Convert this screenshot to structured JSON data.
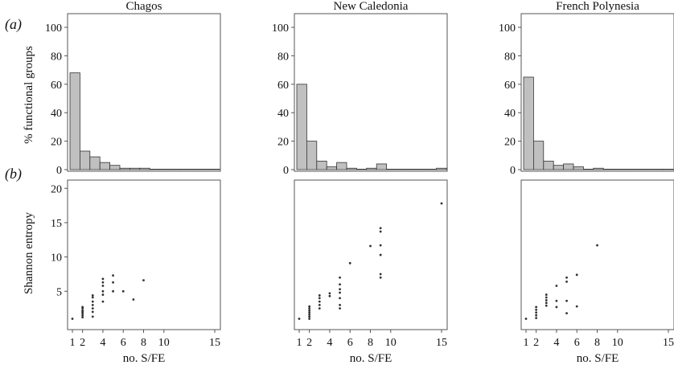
{
  "figure": {
    "label_a": "(a)",
    "label_b": "(b)",
    "ylabel_top": "% functional groups",
    "ylabel_bottom": "Shannon entropy",
    "xlabel": "no. S/FE",
    "bar_fill": "#c0c0c0",
    "point_color": "#333333"
  },
  "chart_data": [
    {
      "type": "bar",
      "title": "Chagos",
      "xlabel": "",
      "ylabel": "% functional groups",
      "x_bins": [
        1,
        2,
        3,
        4,
        5,
        6,
        7,
        8,
        9,
        10,
        11,
        12,
        13,
        14,
        15
      ],
      "values": [
        68,
        13,
        9,
        5,
        3,
        1,
        1,
        1,
        0,
        0,
        0,
        0,
        0,
        0,
        0
      ],
      "ylim": [
        0,
        100
      ],
      "yticks": [
        "0",
        "20",
        "40",
        "60",
        "80",
        "100"
      ]
    },
    {
      "type": "bar",
      "title": "New Caledonia",
      "xlabel": "",
      "ylabel": "",
      "x_bins": [
        1,
        2,
        3,
        4,
        5,
        6,
        7,
        8,
        9,
        10,
        11,
        12,
        13,
        14,
        15
      ],
      "values": [
        60,
        20,
        6,
        2,
        5,
        1,
        0,
        1,
        4,
        0,
        0,
        0,
        0,
        0,
        1
      ],
      "ylim": [
        0,
        100
      ],
      "yticks": [
        "0",
        "20",
        "40",
        "60",
        "80",
        "100"
      ]
    },
    {
      "type": "bar",
      "title": "French Polynesia",
      "xlabel": "",
      "ylabel": "",
      "x_bins": [
        1,
        2,
        3,
        4,
        5,
        6,
        7,
        8,
        9,
        10,
        11,
        12,
        13,
        14,
        15
      ],
      "values": [
        65,
        20,
        6,
        3,
        4,
        2,
        0,
        1,
        0,
        0,
        0,
        0,
        0,
        0,
        0
      ],
      "ylim": [
        0,
        100
      ],
      "yticks": [
        "0",
        "20",
        "40",
        "60",
        "80",
        "100"
      ]
    },
    {
      "type": "scatter",
      "title": "",
      "xlabel": "no. S/FE",
      "ylabel": "Shannon entropy",
      "xticks": [
        "1",
        "2",
        "4",
        "6",
        "8",
        "10",
        "15"
      ],
      "yticks": [
        "5",
        "10",
        "15",
        "20"
      ],
      "xlim": [
        0.5,
        15.5
      ],
      "ylim": [
        0,
        20.5
      ],
      "points": [
        {
          "x": 1,
          "y": 1.0
        },
        {
          "x": 2,
          "y": 1.2
        },
        {
          "x": 2,
          "y": 1.5
        },
        {
          "x": 2,
          "y": 1.8
        },
        {
          "x": 2,
          "y": 2.0
        },
        {
          "x": 2,
          "y": 2.2
        },
        {
          "x": 2,
          "y": 2.5
        },
        {
          "x": 2,
          "y": 2.7
        },
        {
          "x": 3,
          "y": 1.3
        },
        {
          "x": 3,
          "y": 2.0
        },
        {
          "x": 3,
          "y": 2.5
        },
        {
          "x": 3,
          "y": 3.0
        },
        {
          "x": 3,
          "y": 3.5
        },
        {
          "x": 3,
          "y": 4.1
        },
        {
          "x": 3,
          "y": 4.4
        },
        {
          "x": 4,
          "y": 3.5
        },
        {
          "x": 4,
          "y": 4.5
        },
        {
          "x": 4,
          "y": 5.0
        },
        {
          "x": 4,
          "y": 5.8
        },
        {
          "x": 4,
          "y": 6.3
        },
        {
          "x": 4,
          "y": 6.8
        },
        {
          "x": 5,
          "y": 5.0
        },
        {
          "x": 5,
          "y": 6.3
        },
        {
          "x": 5,
          "y": 7.3
        },
        {
          "x": 6,
          "y": 5.0
        },
        {
          "x": 7,
          "y": 3.8
        },
        {
          "x": 8,
          "y": 6.6
        }
      ]
    },
    {
      "type": "scatter",
      "title": "",
      "xlabel": "no. S/FE",
      "ylabel": "",
      "xticks": [
        "1",
        "2",
        "4",
        "6",
        "8",
        "10",
        "15"
      ],
      "yticks": [],
      "xlim": [
        0.5,
        15.5
      ],
      "ylim": [
        0,
        20.5
      ],
      "points": [
        {
          "x": 1,
          "y": 1.0
        },
        {
          "x": 2,
          "y": 1.0
        },
        {
          "x": 2,
          "y": 1.3
        },
        {
          "x": 2,
          "y": 1.6
        },
        {
          "x": 2,
          "y": 1.9
        },
        {
          "x": 2,
          "y": 2.2
        },
        {
          "x": 2,
          "y": 2.5
        },
        {
          "x": 2,
          "y": 2.8
        },
        {
          "x": 3,
          "y": 2.5
        },
        {
          "x": 3,
          "y": 3.0
        },
        {
          "x": 3,
          "y": 3.5
        },
        {
          "x": 3,
          "y": 4.0
        },
        {
          "x": 3,
          "y": 4.4
        },
        {
          "x": 4,
          "y": 4.3
        },
        {
          "x": 4,
          "y": 4.7
        },
        {
          "x": 5,
          "y": 2.5
        },
        {
          "x": 5,
          "y": 3.0
        },
        {
          "x": 5,
          "y": 4.0
        },
        {
          "x": 5,
          "y": 4.8
        },
        {
          "x": 5,
          "y": 5.3
        },
        {
          "x": 5,
          "y": 6.0
        },
        {
          "x": 5,
          "y": 7.0
        },
        {
          "x": 6,
          "y": 9.1
        },
        {
          "x": 8,
          "y": 11.6
        },
        {
          "x": 9,
          "y": 7.0
        },
        {
          "x": 9,
          "y": 7.5
        },
        {
          "x": 9,
          "y": 10.3
        },
        {
          "x": 9,
          "y": 11.7
        },
        {
          "x": 9,
          "y": 13.7
        },
        {
          "x": 9,
          "y": 14.2
        },
        {
          "x": 15,
          "y": 17.8
        }
      ]
    },
    {
      "type": "scatter",
      "title": "",
      "xlabel": "no. S/FE",
      "ylabel": "",
      "xticks": [
        "1",
        "2",
        "4",
        "6",
        "8",
        "10",
        "15"
      ],
      "yticks": [],
      "xlim": [
        0.5,
        15.5
      ],
      "ylim": [
        0,
        20.5
      ],
      "points": [
        {
          "x": 1,
          "y": 1.0
        },
        {
          "x": 2,
          "y": 1.1
        },
        {
          "x": 2,
          "y": 1.5
        },
        {
          "x": 2,
          "y": 1.9
        },
        {
          "x": 2,
          "y": 2.3
        },
        {
          "x": 2,
          "y": 2.7
        },
        {
          "x": 3,
          "y": 2.9
        },
        {
          "x": 3,
          "y": 3.3
        },
        {
          "x": 3,
          "y": 3.7
        },
        {
          "x": 3,
          "y": 4.1
        },
        {
          "x": 3,
          "y": 4.5
        },
        {
          "x": 4,
          "y": 2.7
        },
        {
          "x": 4,
          "y": 3.6
        },
        {
          "x": 4,
          "y": 5.8
        },
        {
          "x": 5,
          "y": 1.8
        },
        {
          "x": 5,
          "y": 3.6
        },
        {
          "x": 5,
          "y": 6.4
        },
        {
          "x": 5,
          "y": 7.0
        },
        {
          "x": 6,
          "y": 2.8
        },
        {
          "x": 6,
          "y": 7.4
        },
        {
          "x": 8,
          "y": 11.7
        }
      ]
    }
  ]
}
